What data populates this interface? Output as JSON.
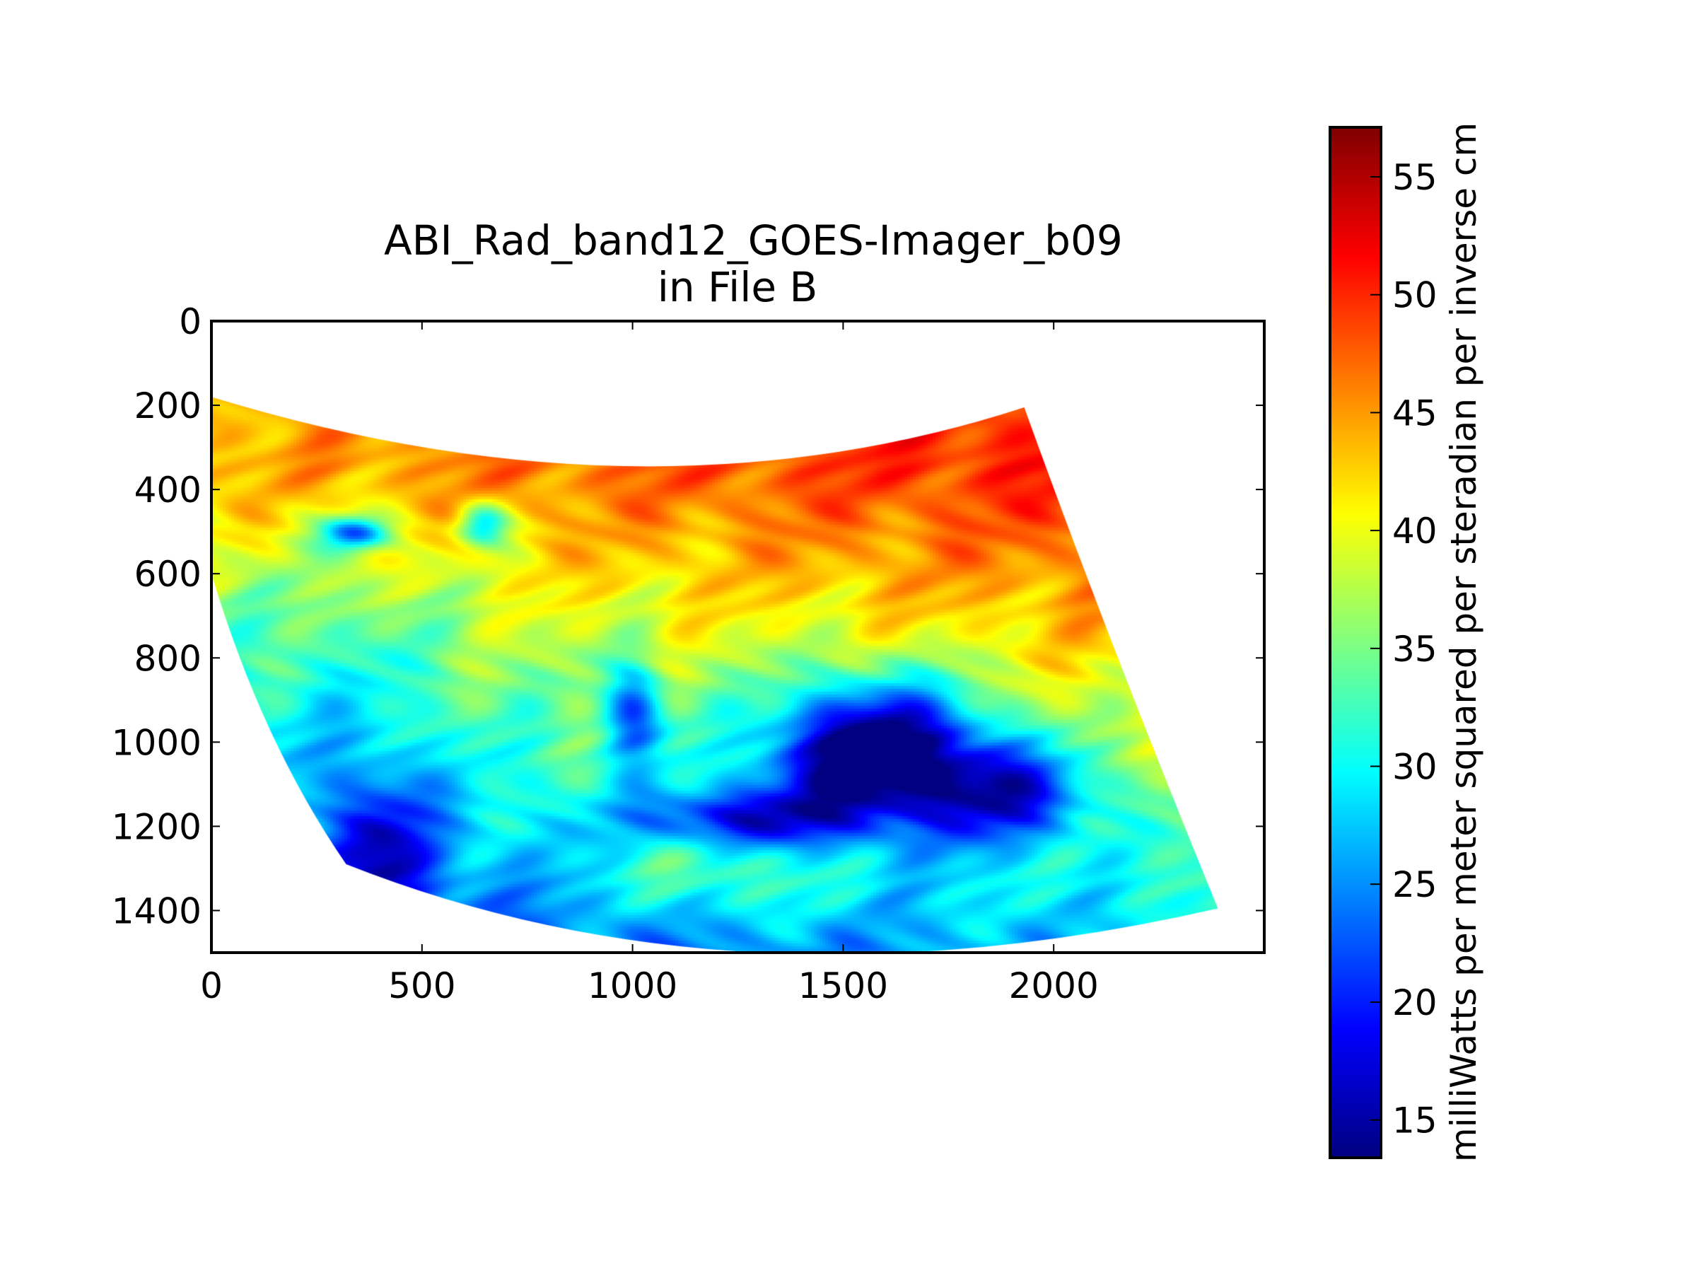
{
  "chart_data": {
    "type": "heatmap",
    "title_line1": "ABI_Rad_band12_GOES-Imager_b09",
    "title_line2": "in File B",
    "xlabel": "",
    "ylabel": "",
    "xlim": [
      0,
      2500
    ],
    "ylim": [
      1500,
      0
    ],
    "x_ticks": [
      0,
      500,
      1000,
      1500,
      2000
    ],
    "y_ticks": [
      0,
      200,
      400,
      600,
      800,
      1000,
      1200,
      1400
    ],
    "colormap": "jet",
    "colorbar": {
      "label": "milliWatts per meter squared per steradian per inverse cm",
      "range": [
        13.4,
        57.1
      ],
      "ticks": [
        15,
        20,
        25,
        30,
        35,
        40,
        45,
        50,
        55
      ]
    },
    "grid": false
  }
}
